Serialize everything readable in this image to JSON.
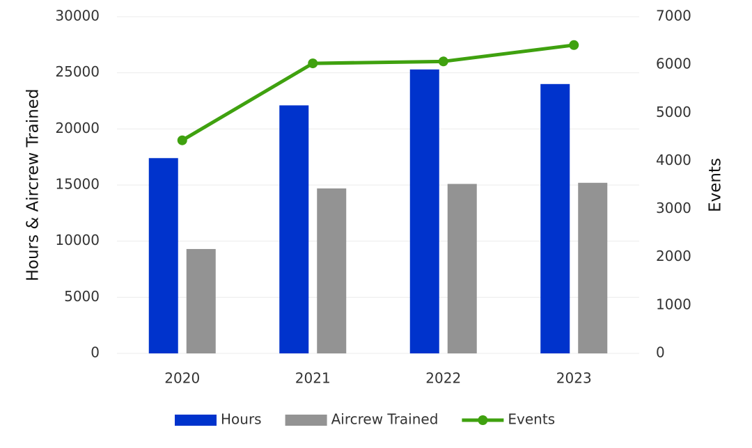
{
  "chart_data": {
    "type": "bar",
    "categories": [
      "2020",
      "2021",
      "2022",
      "2023"
    ],
    "y_label": "Hours & Aircrew Trained",
    "y2_label": "Events",
    "series": [
      {
        "name": "Hours",
        "color": "#0033cc",
        "values": [
          17400,
          22100,
          25300,
          24000
        ]
      },
      {
        "name": "Aircrew Trained",
        "color": "#939393",
        "values": [
          9300,
          14700,
          15100,
          15200
        ]
      },
      {
        "name": "Events",
        "color": "#3fa10f",
        "type": "line",
        "axis": "y2",
        "values": [
          4430,
          6030,
          6070,
          6410
        ]
      }
    ],
    "ylim": [
      0,
      30000
    ],
    "yticks": [
      0,
      5000,
      10000,
      15000,
      20000,
      25000,
      30000
    ],
    "y2lim": [
      0,
      7000
    ],
    "y2ticks": [
      0,
      1000,
      2000,
      3000,
      4000,
      5000,
      6000,
      7000
    ],
    "grid": true,
    "legend": "bottom"
  }
}
